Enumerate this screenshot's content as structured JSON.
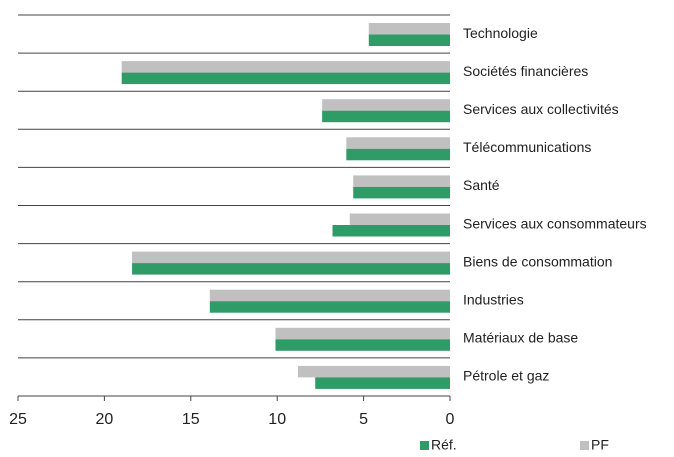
{
  "chart_data": {
    "type": "barh",
    "categories": [
      "Technologie",
      "Sociétés financières",
      "Services aux collectivités",
      "Télécommunications",
      "Santé",
      "Services aux consommateurs",
      "Biens de consommation",
      "Industries",
      "Matériaux de base",
      "Pétrole et gaz"
    ],
    "series": [
      {
        "name": "PF",
        "color": "#c0c0c0",
        "values": [
          4.7,
          19.0,
          7.4,
          6.0,
          5.6,
          5.8,
          18.4,
          13.9,
          10.1,
          8.8
        ]
      },
      {
        "name": "Réf.",
        "color": "#2f9b67",
        "values": [
          4.7,
          19.0,
          7.4,
          6.0,
          5.6,
          6.8,
          18.4,
          13.9,
          10.1,
          7.8
        ]
      }
    ],
    "xlim": [
      25,
      0
    ],
    "xticks": [
      25,
      20,
      15,
      10,
      5,
      0
    ]
  }
}
